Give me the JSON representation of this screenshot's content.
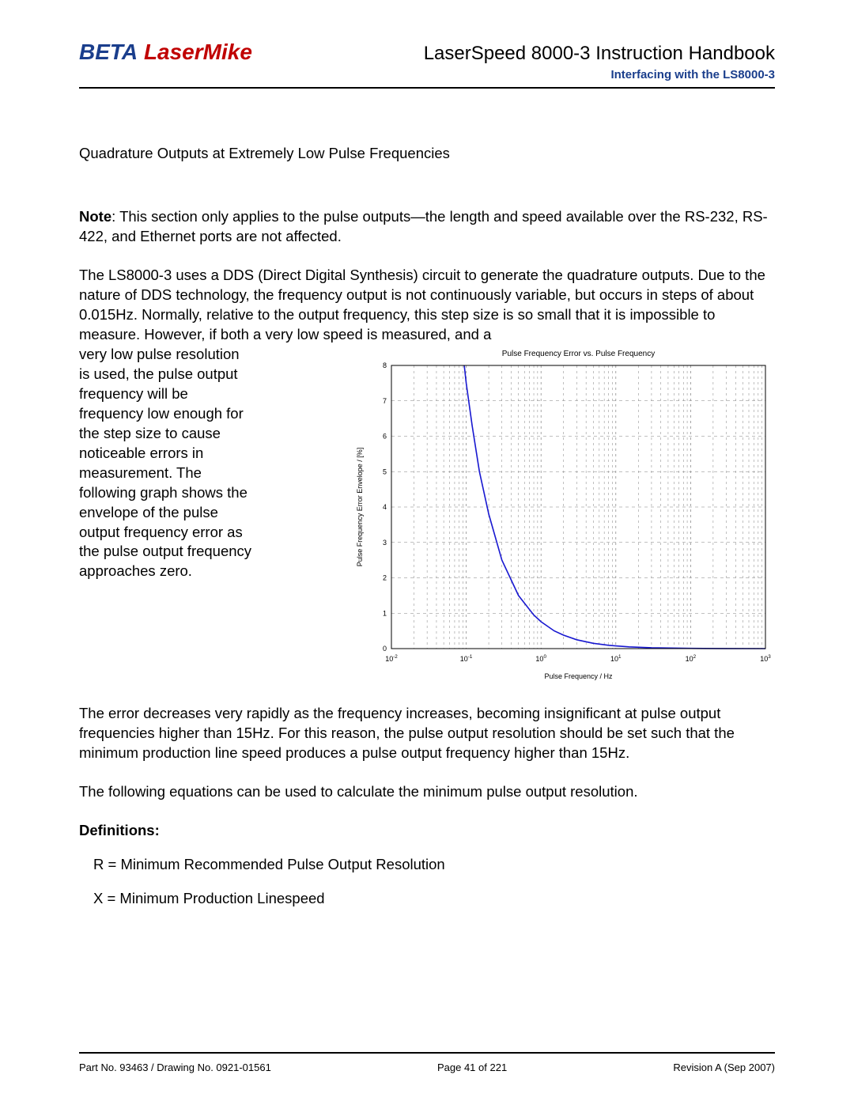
{
  "header": {
    "logo_beta": "BETA",
    "logo_laser": "LaserMike",
    "doc_title": "LaserSpeed 8000-3 Instruction Handbook",
    "subtitle": "Interfacing with the LS8000-3"
  },
  "body": {
    "section_title": "Quadrature Outputs at Extremely Low Pulse Frequencies",
    "note_label": "Note",
    "note_text": ": This section only applies to the pulse outputs—the length and speed available over the RS-232, RS-422, and Ethernet ports are not affected.",
    "p2": "The LS8000-3 uses a DDS (Direct Digital Synthesis) circuit to generate the quadrature outputs.  Due to the nature of DDS technology, the frequency output is not continuously variable, but occurs in steps of about 0.015Hz.  Normally, relative to the output frequency, this step size is so small that it is impossible to measure.  However, if both a very low speed is measured, and a",
    "wrap_text": "very low pulse resolution is used, the pulse output frequency will be frequency low enough for the step size to cause noticeable errors in measurement.  The following graph shows the envelope of the pulse output frequency error as the pulse output frequency approaches zero.",
    "p3": "The error decreases very rapidly as the frequency increases, becoming insignificant at pulse output frequencies higher than 15Hz.  For this reason, the pulse output resolution should be set such that the minimum production line speed produces a pulse output frequency higher than 15Hz.",
    "p4": "The following equations can be used to calculate the minimum pulse output resolution.",
    "defs_heading": "Definitions",
    "def_r": "R = Minimum Recommended Pulse Output Resolution",
    "def_x": "X = Minimum Production Linespeed"
  },
  "chart": {
    "title": "Pulse Frequency Error vs. Pulse Frequency",
    "xlabel": "Pulse Frequency / Hz",
    "ylabel": "Pulse Frequency Error Envelope / [%]",
    "title_fontsize": 10,
    "label_fontsize": 9,
    "tick_fontsize": 9,
    "line_color": "#1818d0",
    "grid_color": "#808080",
    "axis_color": "#000000",
    "background": "#ffffff",
    "line_width": 1.6,
    "ylim": [
      0,
      8
    ],
    "ytick_step": 1,
    "x_decades": [
      -2,
      -1,
      0,
      1,
      2,
      3
    ],
    "x_tick_labels": [
      "10⁻²",
      "10⁻¹",
      "10⁰",
      "10¹",
      "10²",
      "10³"
    ],
    "curve_points": [
      [
        0.094,
        8.0
      ],
      [
        0.1,
        7.5
      ],
      [
        0.12,
        6.3
      ],
      [
        0.15,
        5.0
      ],
      [
        0.2,
        3.8
      ],
      [
        0.3,
        2.5
      ],
      [
        0.5,
        1.5
      ],
      [
        0.8,
        0.95
      ],
      [
        1.0,
        0.76
      ],
      [
        1.5,
        0.5
      ],
      [
        2.0,
        0.38
      ],
      [
        3.0,
        0.25
      ],
      [
        5.0,
        0.15
      ],
      [
        8.0,
        0.094
      ],
      [
        10,
        0.076
      ],
      [
        15,
        0.05
      ],
      [
        30,
        0.025
      ],
      [
        100,
        0.0076
      ],
      [
        300,
        0.0025
      ],
      [
        1000,
        0.0008
      ]
    ]
  },
  "footer": {
    "left": "Part No. 93463 / Drawing No. 0921-01561",
    "center": "Page 41 of 221",
    "right": "Revision A (Sep 2007)"
  },
  "colors": {
    "brand_blue": "#1a3e8c",
    "brand_red": "#c00000",
    "text": "#000000"
  }
}
